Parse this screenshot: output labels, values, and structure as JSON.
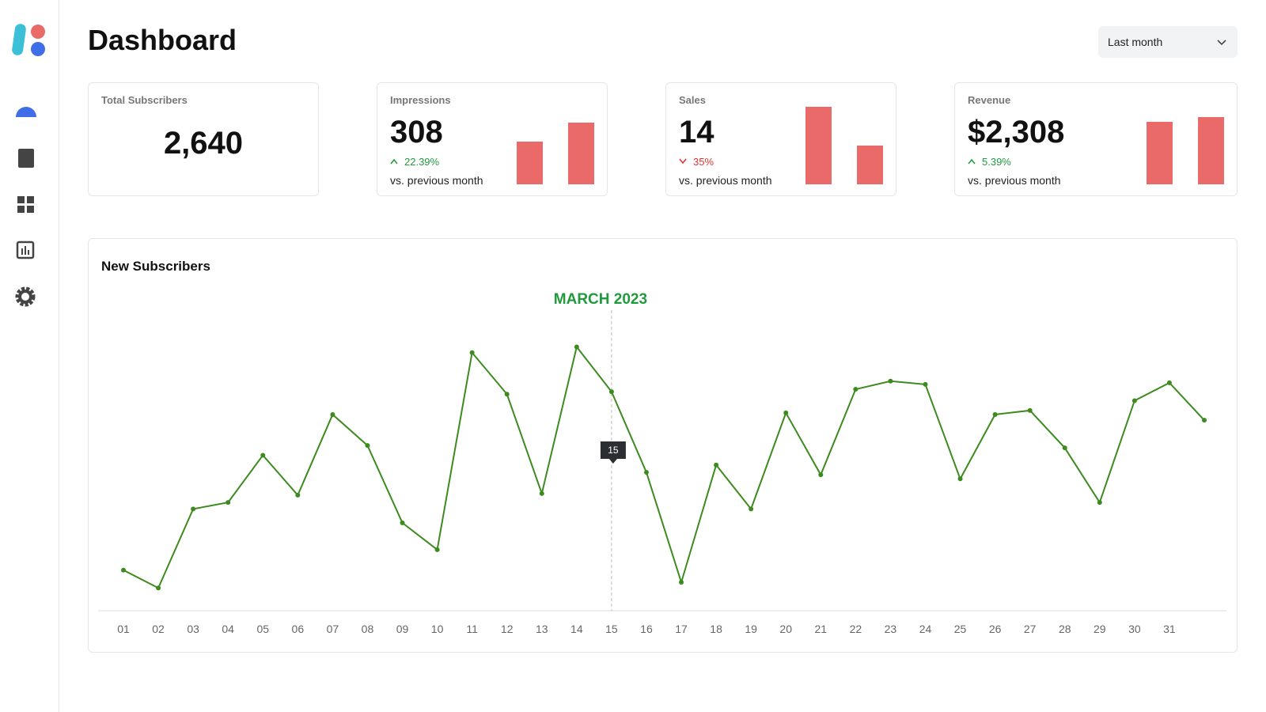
{
  "sidebar": {
    "items": 5
  },
  "header": {
    "title": "Dashboard",
    "dropdown": "Last month"
  },
  "cards": [
    {
      "title": "Total Subscribers",
      "value": "2,640"
    },
    {
      "title": "Impressions",
      "value": "308",
      "change": "22.39%",
      "direction": "up",
      "note": "vs. previous month",
      "bars": [
        52,
        76
      ]
    },
    {
      "title": "Sales",
      "value": "14",
      "change": "35%",
      "direction": "down",
      "note": "vs. previous month",
      "bars": [
        95,
        48
      ]
    },
    {
      "title": "Revenue",
      "value": "$2,308",
      "change": "5.39%",
      "direction": "up",
      "note": "vs. previous month",
      "bars": [
        77,
        83
      ]
    }
  ],
  "chart_data": {
    "type": "line",
    "title": "New Subscribers",
    "annotation": "MARCH 2023",
    "tooltip": "15",
    "categories": [
      "01",
      "02",
      "03",
      "04",
      "05",
      "06",
      "07",
      "08",
      "09",
      "10",
      "11",
      "12",
      "13",
      "14",
      "15",
      "16",
      "17",
      "18",
      "19",
      "20",
      "21",
      "22",
      "23",
      "24",
      "25",
      "26",
      "27",
      "28",
      "29",
      "30",
      "31",
      null
    ],
    "values": [
      48,
      26,
      123,
      131,
      189,
      140,
      239,
      201,
      106,
      73,
      315,
      264,
      142,
      322,
      267,
      168,
      33,
      177,
      123,
      241,
      165,
      270,
      280,
      276,
      160,
      239,
      244,
      198,
      131,
      256,
      278,
      232
    ],
    "color": "#3d8b1f",
    "ylim": [
      0,
      340
    ]
  }
}
